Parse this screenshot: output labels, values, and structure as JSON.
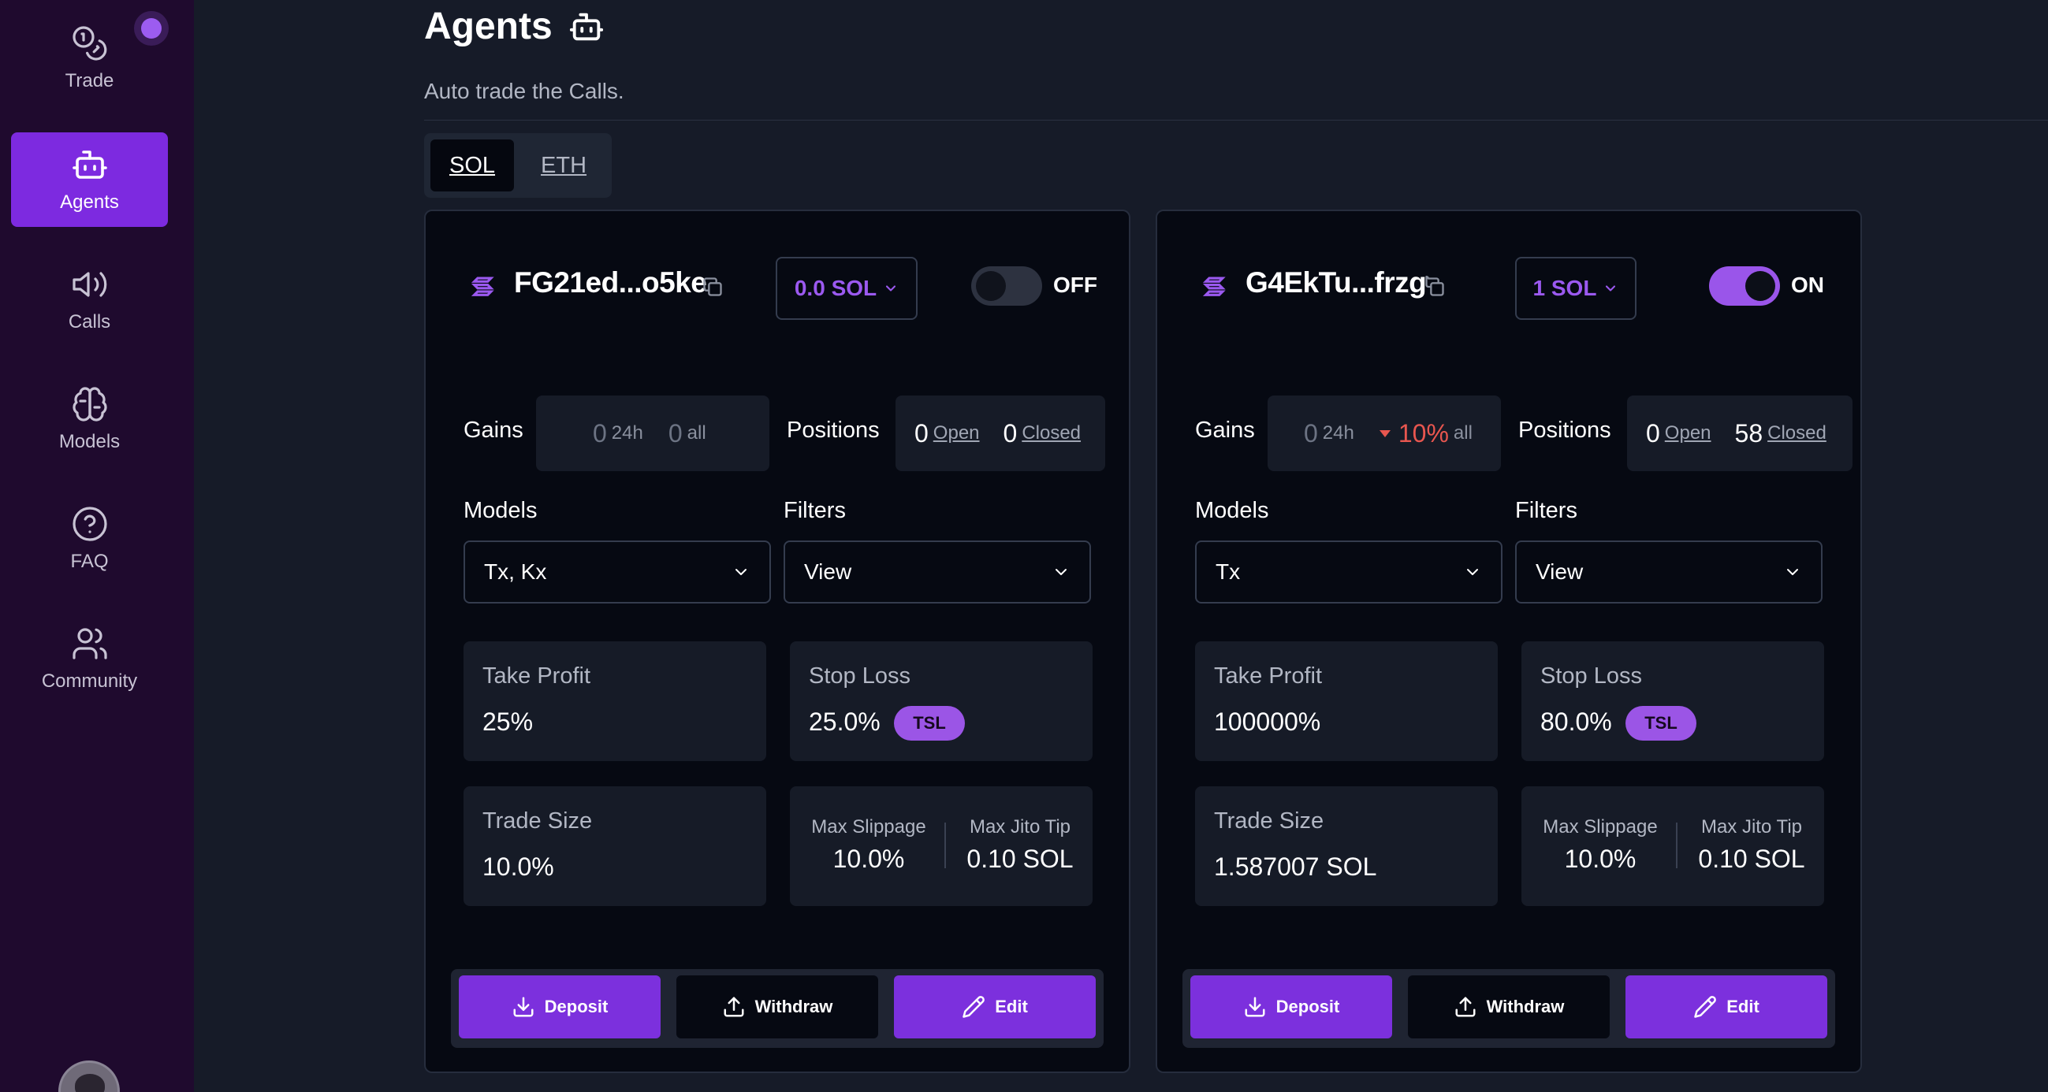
{
  "sidebar": {
    "items": [
      {
        "label": "Trade",
        "icon": "coins-icon"
      },
      {
        "label": "Agents",
        "icon": "robot-icon",
        "active": true
      },
      {
        "label": "Calls",
        "icon": "speaker-icon"
      },
      {
        "label": "Models",
        "icon": "brain-icon"
      },
      {
        "label": "FAQ",
        "icon": "help-icon"
      },
      {
        "label": "Community",
        "icon": "users-icon"
      }
    ]
  },
  "header": {
    "title": "Agents",
    "subtitle": "Auto trade the Calls."
  },
  "tabs": [
    "SOL",
    "ETH"
  ],
  "cards": [
    {
      "wallet": "FG21ed...o5ke",
      "sol_amount": "0.0 SOL",
      "toggle": "OFF",
      "gains_label": "Gains",
      "gains_24h": "0",
      "gains_24h_unit": "24h",
      "gains_all": "0",
      "gains_all_unit": "all",
      "positions_label": "Positions",
      "open_count": "0",
      "open_label": "Open",
      "closed_count": "0",
      "closed_label": "Closed",
      "models_label": "Models",
      "models_value": "Tx, Kx",
      "filters_label": "Filters",
      "filters_value": "View",
      "take_profit_label": "Take Profit",
      "take_profit": "25%",
      "stop_loss_label": "Stop Loss",
      "stop_loss": "25.0%",
      "tsl": "TSL",
      "trade_size_label": "Trade Size",
      "trade_size": "10.0%",
      "max_slippage_label": "Max Slippage",
      "max_slippage": "10.0%",
      "max_jito_label": "Max Jito Tip",
      "max_jito": "0.10 SOL",
      "deposit": "Deposit",
      "withdraw": "Withdraw",
      "edit": "Edit"
    },
    {
      "wallet": "G4EkTu...frzg",
      "sol_amount": "1 SOL",
      "toggle": "ON",
      "gains_label": "Gains",
      "gains_24h": "0",
      "gains_24h_unit": "24h",
      "gains_all": "10%",
      "gains_all_unit": "all",
      "positions_label": "Positions",
      "open_count": "0",
      "open_label": "Open",
      "closed_count": "58",
      "closed_label": "Closed",
      "models_label": "Models",
      "models_value": "Tx",
      "filters_label": "Filters",
      "filters_value": "View",
      "take_profit_label": "Take Profit",
      "take_profit": "100000%",
      "stop_loss_label": "Stop Loss",
      "stop_loss": "80.0%",
      "tsl": "TSL",
      "trade_size_label": "Trade Size",
      "trade_size": "1.587007 SOL",
      "max_slippage_label": "Max Slippage",
      "max_slippage": "10.0%",
      "max_jito_label": "Max Jito Tip",
      "max_jito": "0.10 SOL",
      "deposit": "Deposit",
      "withdraw": "Withdraw",
      "edit": "Edit"
    }
  ],
  "colors": {
    "sidebar_bg": "#1f0a2e",
    "accent": "#7c30dd",
    "page_bg": "#161b28",
    "card_bg": "#060912",
    "loss_red": "#e8564f"
  }
}
